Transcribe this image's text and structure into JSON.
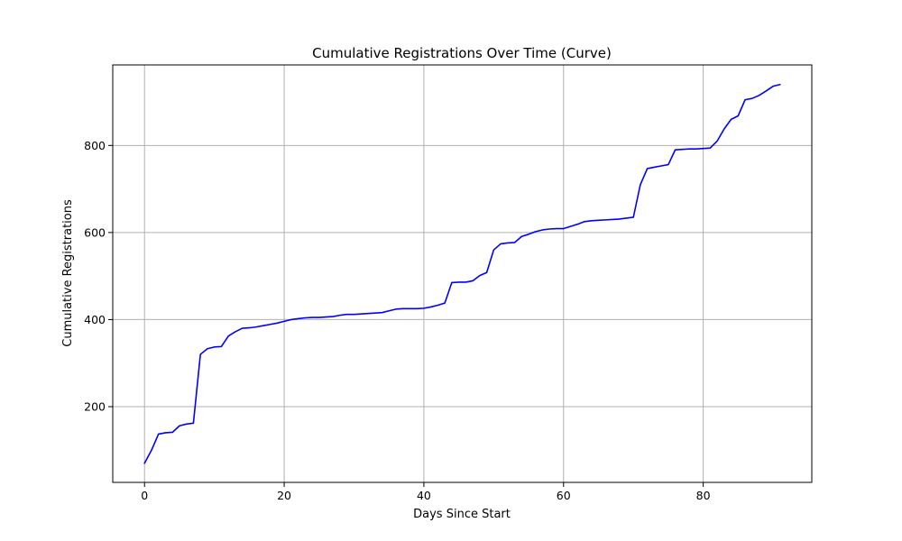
{
  "chart_data": {
    "type": "line",
    "title": "Cumulative Registrations Over Time (Curve)",
    "xlabel": "Days Since Start",
    "ylabel": "Cumulative Registrations",
    "xlim": [
      -4.55,
      95.55
    ],
    "ylim": [
      26,
      985
    ],
    "x_ticks": [
      0,
      20,
      40,
      60,
      80
    ],
    "y_ticks": [
      200,
      400,
      600,
      800
    ],
    "grid": true,
    "line_color": "#0000ff",
    "series": [
      {
        "x": [
          0,
          1,
          2,
          3,
          4,
          5,
          6,
          7,
          8,
          9,
          10,
          11,
          12,
          13,
          14,
          15,
          16,
          17,
          18,
          19,
          20,
          21,
          22,
          23,
          24,
          25,
          26,
          27,
          28,
          29,
          30,
          31,
          32,
          33,
          34,
          35,
          36,
          37,
          38,
          39,
          40,
          41,
          42,
          43,
          44,
          45,
          46,
          47,
          48,
          49,
          50,
          51,
          52,
          53,
          54,
          55,
          56,
          57,
          58,
          59,
          60,
          61,
          62,
          63,
          64,
          65,
          66,
          67,
          68,
          69,
          70,
          71,
          72,
          73,
          74,
          75,
          76,
          77,
          78,
          79,
          80,
          81,
          82,
          83,
          84,
          85,
          86,
          87,
          88,
          89,
          90,
          91
        ],
        "y": [
          70,
          100,
          137,
          140,
          141,
          156,
          160,
          162,
          320,
          333,
          337,
          338,
          362,
          372,
          380,
          381,
          383,
          386,
          389,
          392,
          396,
          400,
          402,
          404,
          405,
          405,
          406,
          407,
          410,
          412,
          412,
          413,
          414,
          415,
          416,
          420,
          424,
          425,
          425,
          425,
          426,
          429,
          433,
          438,
          485,
          486,
          486,
          489,
          501,
          508,
          560,
          574,
          576,
          577,
          591,
          596,
          602,
          606,
          608,
          609,
          609,
          614,
          619,
          625,
          627,
          628,
          629,
          630,
          631,
          633,
          635,
          710,
          747,
          750,
          753,
          756,
          790,
          791,
          792,
          792,
          793,
          794,
          810,
          838,
          860,
          868,
          905,
          908,
          915,
          925,
          936,
          940
        ]
      }
    ]
  }
}
